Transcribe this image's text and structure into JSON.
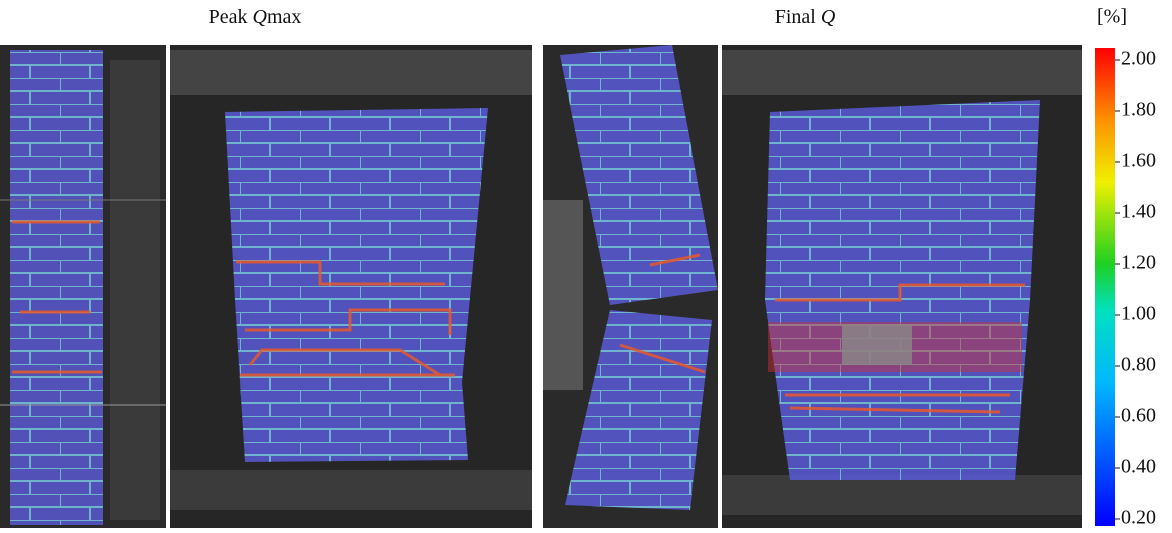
{
  "panels": [
    {
      "prefix": "Peak ",
      "symbol": "Q",
      "subscript": "max"
    },
    {
      "prefix": "Final ",
      "symbol": "Q"
    }
  ],
  "colorbar": {
    "unit": "[%]",
    "lim": [
      0.2,
      2.0
    ],
    "ticks": [
      {
        "value": 0.2,
        "label": "0.20"
      },
      {
        "value": 0.4,
        "label": "0.40"
      },
      {
        "value": 0.6,
        "label": "0.60"
      },
      {
        "value": 0.8,
        "label": "0.80"
      },
      {
        "value": 1.0,
        "label": "1.00"
      },
      {
        "value": 1.2,
        "label": "1.20"
      },
      {
        "value": 1.4,
        "label": "1.40"
      },
      {
        "value": 1.6,
        "label": "1.60"
      },
      {
        "value": 1.8,
        "label": "1.80"
      },
      {
        "value": 2.0,
        "label": "2.00"
      }
    ]
  }
}
